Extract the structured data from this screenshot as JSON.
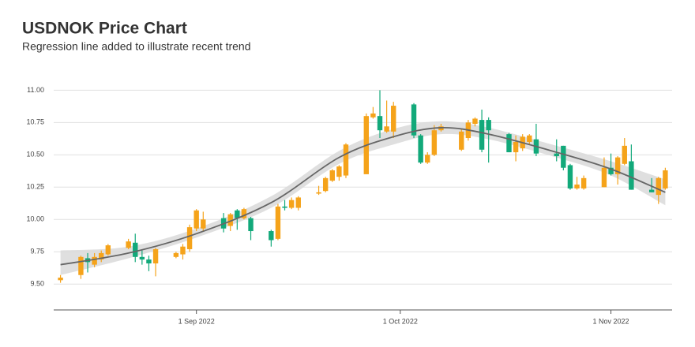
{
  "chart_data": {
    "type": "candlestick",
    "title": "USDNOK Price Chart",
    "subtitle": "Regression line added to illustrate recent trend",
    "up_color": "#f5a31a",
    "down_color": "#12a97a",
    "x": [
      "2022-08-12",
      "2022-08-15",
      "2022-08-16",
      "2022-08-17",
      "2022-08-18",
      "2022-08-19",
      "2022-08-22",
      "2022-08-23",
      "2022-08-24",
      "2022-08-25",
      "2022-08-26",
      "2022-08-29",
      "2022-08-30",
      "2022-08-31",
      "2022-09-01",
      "2022-09-02",
      "2022-09-05",
      "2022-09-06",
      "2022-09-07",
      "2022-09-08",
      "2022-09-09",
      "2022-09-12",
      "2022-09-13",
      "2022-09-14",
      "2022-09-15",
      "2022-09-16",
      "2022-09-19",
      "2022-09-20",
      "2022-09-21",
      "2022-09-22",
      "2022-09-23",
      "2022-09-26",
      "2022-09-27",
      "2022-09-28",
      "2022-09-29",
      "2022-09-30",
      "2022-10-03",
      "2022-10-04",
      "2022-10-05",
      "2022-10-06",
      "2022-10-07",
      "2022-10-10",
      "2022-10-11",
      "2022-10-12",
      "2022-10-13",
      "2022-10-14",
      "2022-10-17",
      "2022-10-18",
      "2022-10-19",
      "2022-10-20",
      "2022-10-21",
      "2022-10-24",
      "2022-10-25",
      "2022-10-26",
      "2022-10-27",
      "2022-10-28",
      "2022-10-31",
      "2022-11-01",
      "2022-11-02",
      "2022-11-03",
      "2022-11-04",
      "2022-11-07",
      "2022-11-08",
      "2022-11-09"
    ],
    "open": [
      9.53,
      9.57,
      9.7,
      9.65,
      9.69,
      9.73,
      9.78,
      9.82,
      9.71,
      9.69,
      9.66,
      9.71,
      9.73,
      9.77,
      9.93,
      9.93,
      10.01,
      9.95,
      10.07,
      10.01,
      10.01,
      9.91,
      9.85,
      10.1,
      10.09,
      10.09,
      10.2,
      10.22,
      10.3,
      10.33,
      10.34,
      10.35,
      10.79,
      10.8,
      10.68,
      10.68,
      10.89,
      10.65,
      10.44,
      10.5,
      10.69,
      10.54,
      10.63,
      10.74,
      10.77,
      10.77,
      10.66,
      10.52,
      10.55,
      10.6,
      10.62,
      10.51,
      10.57,
      10.42,
      10.24,
      10.24,
      10.25,
      10.4,
      10.35,
      10.43,
      10.45,
      10.23,
      10.19,
      10.24
    ],
    "high": [
      9.57,
      9.72,
      9.74,
      9.74,
      9.76,
      9.81,
      9.85,
      9.89,
      9.76,
      9.72,
      9.78,
      9.75,
      9.81,
      9.96,
      10.08,
      10.06,
      10.05,
      10.05,
      10.08,
      10.09,
      10.02,
      9.92,
      10.12,
      10.15,
      10.17,
      10.18,
      10.26,
      10.33,
      10.39,
      10.42,
      10.59,
      10.82,
      10.87,
      11.0,
      10.92,
      10.91,
      10.9,
      10.66,
      10.52,
      10.73,
      10.74,
      10.7,
      10.77,
      10.79,
      10.85,
      10.79,
      10.67,
      10.65,
      10.66,
      10.66,
      10.74,
      10.62,
      10.57,
      10.43,
      10.33,
      10.34,
      10.48,
      10.51,
      10.49,
      10.63,
      10.58,
      10.32,
      10.33,
      10.4
    ],
    "low": [
      9.51,
      9.54,
      9.59,
      9.63,
      9.67,
      9.72,
      9.77,
      9.67,
      9.65,
      9.6,
      9.56,
      9.7,
      9.69,
      9.75,
      9.91,
      9.91,
      9.9,
      9.91,
      9.92,
      10.0,
      9.84,
      9.79,
      9.84,
      10.07,
      10.08,
      10.07,
      10.19,
      10.21,
      10.29,
      10.3,
      10.32,
      10.35,
      10.78,
      10.63,
      10.67,
      10.63,
      10.63,
      10.43,
      10.43,
      10.49,
      10.68,
      10.53,
      10.61,
      10.72,
      10.52,
      10.44,
      10.52,
      10.45,
      10.53,
      10.58,
      10.49,
      10.45,
      10.38,
      10.23,
      10.23,
      10.23,
      10.25,
      10.34,
      10.27,
      10.42,
      10.23,
      10.21,
      10.12,
      10.23
    ],
    "close": [
      9.55,
      9.71,
      9.67,
      9.71,
      9.74,
      9.8,
      9.83,
      9.71,
      9.69,
      9.66,
      9.77,
      9.74,
      9.79,
      9.94,
      10.07,
      10.0,
      9.93,
      10.04,
      10.01,
      10.08,
      9.91,
      9.84,
      10.1,
      10.09,
      10.15,
      10.17,
      10.21,
      10.32,
      10.38,
      10.41,
      10.58,
      10.8,
      10.82,
      10.69,
      10.72,
      10.88,
      10.65,
      10.44,
      10.5,
      10.69,
      10.72,
      10.68,
      10.75,
      10.78,
      10.54,
      10.69,
      10.52,
      10.6,
      10.64,
      10.65,
      10.51,
      10.49,
      10.4,
      10.24,
      10.27,
      10.32,
      10.4,
      10.35,
      10.48,
      10.57,
      10.23,
      10.21,
      10.32,
      10.38
    ],
    "regression": {
      "color": "#666666",
      "band_color": "#d9d9d9",
      "x": [
        "2022-08-12",
        "2022-08-22",
        "2022-09-01",
        "2022-09-12",
        "2022-09-22",
        "2022-09-30",
        "2022-10-07",
        "2022-10-14",
        "2022-10-24",
        "2022-11-01",
        "2022-11-09"
      ],
      "values": [
        9.65,
        9.74,
        9.89,
        10.13,
        10.48,
        10.64,
        10.71,
        10.66,
        10.52,
        10.39,
        10.21
      ],
      "lower": [
        9.57,
        9.7,
        9.86,
        10.09,
        10.43,
        10.58,
        10.66,
        10.62,
        10.48,
        10.34,
        10.11
      ],
      "upper": [
        9.76,
        9.79,
        9.93,
        10.18,
        10.53,
        10.7,
        10.76,
        10.71,
        10.57,
        10.45,
        10.31
      ]
    },
    "xlim": [
      "2022-08-11",
      "2022-11-10"
    ],
    "xticks": [
      {
        "value": "2022-09-01",
        "label": "1 Sep 2022"
      },
      {
        "value": "2022-10-01",
        "label": "1 Oct 2022"
      },
      {
        "value": "2022-11-01",
        "label": "1 Nov 2022"
      }
    ],
    "ylim": [
      9.3,
      11.1
    ],
    "yticks": [
      {
        "value": 9.5,
        "label": "9.50"
      },
      9.75,
      {
        "value": 10,
        "label": "10.00"
      },
      10.25,
      {
        "value": 10.5,
        "label": "10.50"
      },
      10.75,
      {
        "value": 11,
        "label": "11.00"
      }
    ],
    "grid": true
  }
}
